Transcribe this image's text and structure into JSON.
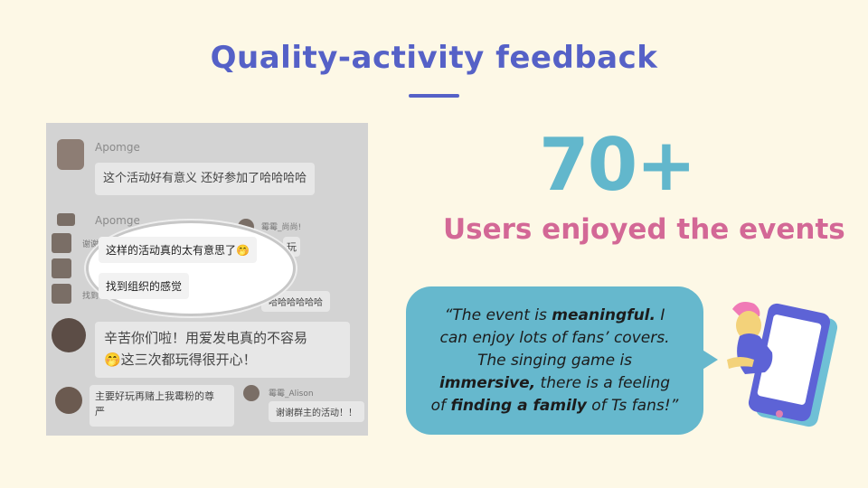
{
  "title": "Quality-activity feedback",
  "stat": "70+",
  "subtitle": "Users enjoyed the events",
  "quote": {
    "l1a": "“The event is ",
    "l1b": "meaningful.",
    "l1c": " I",
    "l2": "can enjoy lots of fans’ covers.",
    "l3": "The singing game is",
    "l4a": "immersive,",
    "l4b": " there is a feeling",
    "l5a": "of ",
    "l5b": "finding a family",
    "l5c": " of Ts fans!”"
  },
  "chat": {
    "user1": "Apomge",
    "msg1": "这个活动好有意义 还好参加了哈哈哈哈",
    "user2": "Apomge",
    "side_user": "霉霉_尚尚!",
    "left_snip1": "谢谢",
    "left_snip2": "找到",
    "side_snip": "玩",
    "side_msg": "哈哈哈哈哈哈",
    "oval_msg1": "这样的活动真的太有意思了🤭",
    "oval_msg2": "找到组织的感觉",
    "big_msg_l1": "辛苦你们啦！用爱发电真的不容易",
    "big_msg_l2": "🤭这三次都玩得很开心！",
    "bottom_msg_l1": "主要好玩再赌上我霉粉的尊",
    "bottom_msg_l2": "严",
    "bottom_user": "霉霉_Alison",
    "bottom_right_msg": "谢谢群主的活动！！"
  },
  "colors": {
    "background": "#fdf8e6",
    "title": "#5561c7",
    "stat": "#62b7cc",
    "subtitle": "#d36896",
    "quote_bg": "#66b8cd"
  },
  "icons": [
    "person-with-phone-illustration"
  ]
}
